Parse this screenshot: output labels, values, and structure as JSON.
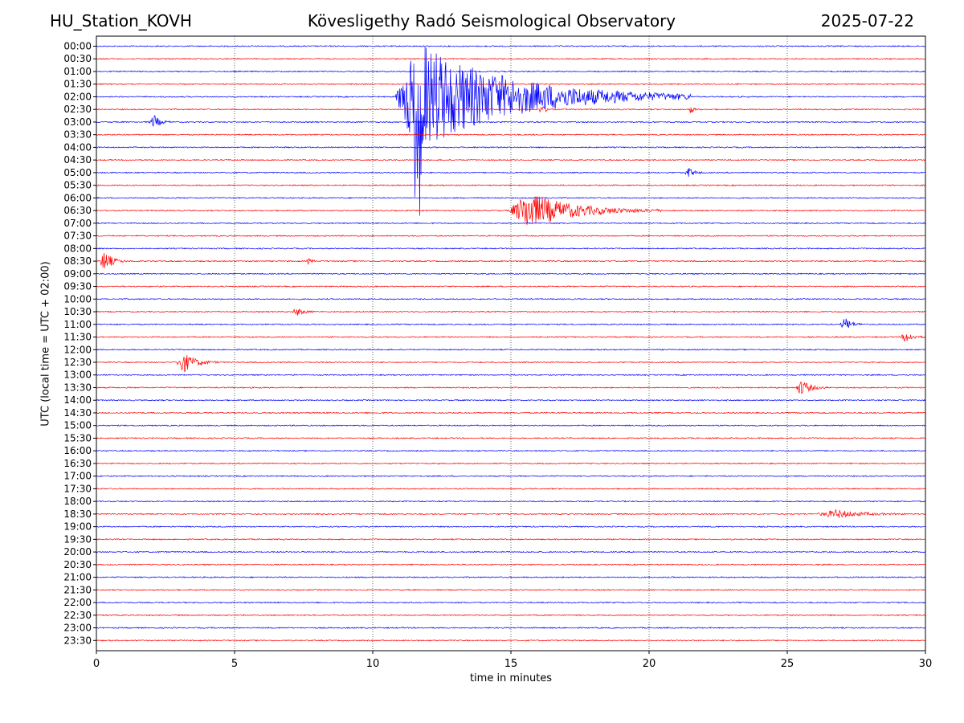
{
  "header": {
    "station": "HU_Station_KOVH",
    "title": "Kövesligethy Radó Seismological Observatory",
    "date": "2025-07-22"
  },
  "colors": {
    "even_row": "#0000ff",
    "odd_row": "#ff0000",
    "axes": "#000000",
    "grid": "#000000"
  },
  "chart_data": {
    "type": "line",
    "title": "Kövesligethy Radó Seismological Observatory",
    "xlabel": "time in minutes",
    "ylabel": "UTC (local time = UTC + 02:00)",
    "xlim": [
      0,
      30
    ],
    "xticks": [
      0,
      5,
      10,
      15,
      20,
      25,
      30
    ],
    "grid": "vertical dotted at x ticks",
    "rows": [
      "00:00",
      "00:30",
      "01:00",
      "01:30",
      "02:00",
      "02:30",
      "03:00",
      "03:30",
      "04:00",
      "04:30",
      "05:00",
      "05:30",
      "06:00",
      "06:30",
      "07:00",
      "07:30",
      "08:00",
      "08:30",
      "09:00",
      "09:30",
      "10:00",
      "10:30",
      "11:00",
      "11:30",
      "12:00",
      "12:30",
      "13:00",
      "13:30",
      "14:00",
      "14:30",
      "15:00",
      "15:30",
      "16:00",
      "16:30",
      "17:00",
      "17:30",
      "18:00",
      "18:30",
      "19:00",
      "19:30",
      "20:00",
      "20:30",
      "21:00",
      "21:30",
      "22:00",
      "22:30",
      "23:00",
      "23:30"
    ],
    "row_colors": [
      "blue",
      "red"
    ],
    "events": [
      {
        "row": "02:00",
        "start": 10.8,
        "peak": 11.6,
        "end": 21.5,
        "amplitude": 5.0,
        "spike_down": 10.5,
        "color": "blue"
      },
      {
        "row": "02:30",
        "start": 16.0,
        "peak": 16.1,
        "end": 16.6,
        "amplitude": 0.4,
        "color": "red"
      },
      {
        "row": "02:30",
        "start": 21.4,
        "peak": 21.5,
        "end": 21.8,
        "amplitude": 0.4,
        "color": "red"
      },
      {
        "row": "03:00",
        "start": 1.9,
        "peak": 2.1,
        "end": 2.7,
        "amplitude": 0.6,
        "color": "blue"
      },
      {
        "row": "05:00",
        "start": 21.3,
        "peak": 21.4,
        "end": 22.0,
        "amplitude": 0.5,
        "color": "blue"
      },
      {
        "row": "06:30",
        "start": 14.9,
        "peak": 15.6,
        "end": 20.5,
        "amplitude": 1.6,
        "color": "red"
      },
      {
        "row": "08:30",
        "start": 0.1,
        "peak": 0.3,
        "end": 1.1,
        "amplitude": 0.9,
        "color": "red"
      },
      {
        "row": "08:30",
        "start": 7.6,
        "peak": 7.7,
        "end": 8.0,
        "amplitude": 0.3,
        "color": "red"
      },
      {
        "row": "10:30",
        "start": 7.1,
        "peak": 7.2,
        "end": 8.0,
        "amplitude": 0.4,
        "color": "red"
      },
      {
        "row": "11:00",
        "start": 26.9,
        "peak": 27.1,
        "end": 27.8,
        "amplitude": 0.6,
        "color": "blue"
      },
      {
        "row": "11:30",
        "start": 29.1,
        "peak": 29.3,
        "end": 30.0,
        "amplitude": 0.5,
        "color": "red"
      },
      {
        "row": "12:30",
        "start": 2.9,
        "peak": 3.1,
        "end": 4.4,
        "amplitude": 1.0,
        "color": "red"
      },
      {
        "row": "13:30",
        "start": 25.3,
        "peak": 25.5,
        "end": 26.5,
        "amplitude": 0.7,
        "color": "red"
      },
      {
        "row": "18:30",
        "start": 26.0,
        "peak": 26.8,
        "end": 29.5,
        "amplitude": 0.35,
        "color": "red"
      }
    ]
  }
}
